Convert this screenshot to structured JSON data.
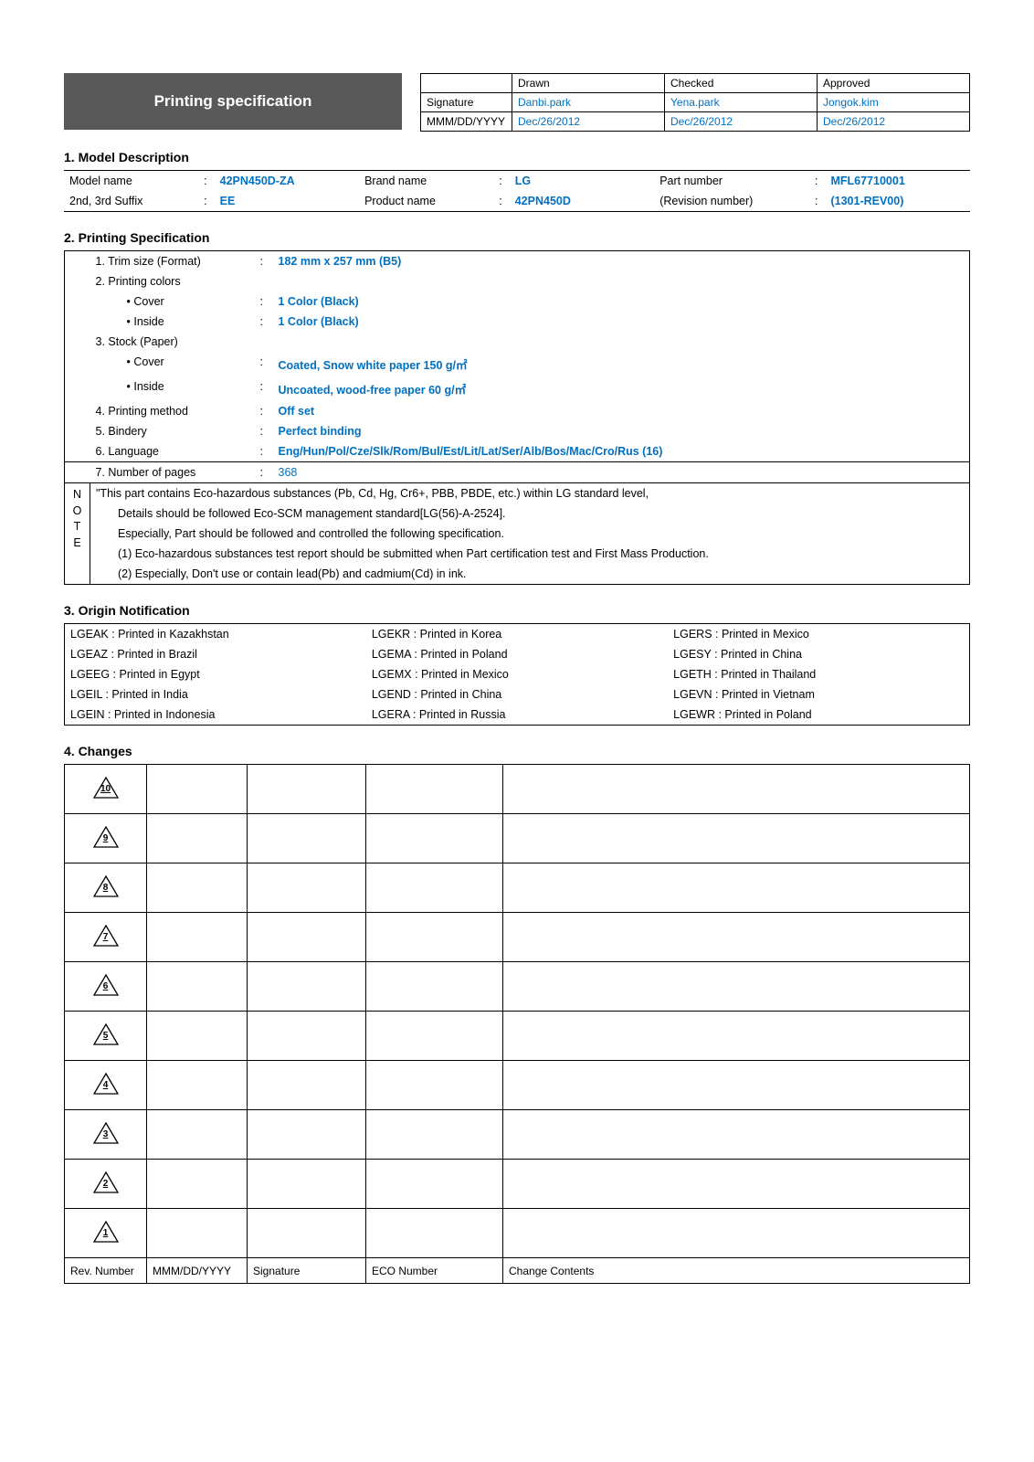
{
  "header": {
    "title": "Printing specification",
    "cols": [
      "Drawn",
      "Checked",
      "Approved"
    ],
    "row_labels": [
      "Signature",
      "MMM/DD/YYYY"
    ],
    "signature": [
      "Danbi.park",
      "Yena.park",
      "Jongok.kim"
    ],
    "date": [
      "Dec/26/2012",
      "Dec/26/2012",
      "Dec/26/2012"
    ]
  },
  "model": {
    "title": "1. Model Description",
    "rows": [
      [
        "Model name",
        "42PN450D-ZA",
        "Brand name",
        "LG",
        "Part number",
        "MFL67710001"
      ],
      [
        "2nd, 3rd Suffix",
        "EE",
        "Product name",
        "42PN450D",
        "(Revision number)",
        "(1301-REV00)"
      ]
    ]
  },
  "spec": {
    "title": "2. Printing Specification",
    "items": [
      {
        "label": "1. Trim size (Format)",
        "value": "182 mm x 257 mm (B5)"
      },
      {
        "label": "2. Printing colors",
        "value": ""
      },
      {
        "label": "• Cover",
        "value": "1 Color (Black)",
        "indent": true
      },
      {
        "label": "• Inside",
        "value": "1 Color (Black)",
        "indent": true
      },
      {
        "label": "3. Stock (Paper)",
        "value": ""
      },
      {
        "label": "• Cover",
        "value": "Coated, Snow white paper 150 g/㎡",
        "indent": true
      },
      {
        "label": "• Inside",
        "value": "Uncoated, wood-free paper 60 g/㎡",
        "indent": true
      },
      {
        "label": "4. Printing method",
        "value": "Off set"
      },
      {
        "label": "5. Bindery",
        "value": "Perfect binding"
      },
      {
        "label": "6. Language",
        "value": "Eng/Hun/Pol/Cze/Slk/Rom/Bul/Est/Lit/Lat/Ser/Alb/Bos/Mac/Cro/Rus (16)"
      }
    ],
    "last_item": {
      "label": "7. Number of pages",
      "value": "368"
    },
    "note_label": "N\nO\nT\nE",
    "notes": [
      "\"This part contains Eco-hazardous substances (Pb, Cd, Hg, Cr6+, PBB, PBDE, etc.) within LG standard level,",
      "Details should be followed Eco-SCM management standard[LG(56)-A-2524].",
      "Especially, Part should be followed and controlled the following specification.",
      "(1) Eco-hazardous substances test report should be submitted when Part certification test and First Mass Production.",
      "(2) Especially, Don't use or contain lead(Pb) and cadmium(Cd) in ink."
    ]
  },
  "origin": {
    "title": "3. Origin Notification",
    "rows": [
      [
        "LGEAK  :   Printed in Kazakhstan",
        "LGEKR  :   Printed in Korea",
        "LGERS  :   Printed in Mexico"
      ],
      [
        "LGEAZ  :   Printed in Brazil",
        "LGEMA  :   Printed in Poland",
        "LGESY  :   Printed in China"
      ],
      [
        "LGEEG  :   Printed in Egypt",
        "LGEMX  :   Printed in Mexico",
        "LGETH  :   Printed in Thailand"
      ],
      [
        "LGEIL  :   Printed in India",
        "LGEND  :   Printed in China",
        "LGEVN  :   Printed in Vietnam"
      ],
      [
        "LGEIN  :   Printed in Indonesia",
        "LGERA  :   Printed in Russia",
        "LGEWR  :   Printed in Poland"
      ]
    ]
  },
  "changes": {
    "title": "4. Changes",
    "rev_numbers": [
      "10",
      "9",
      "8",
      "7",
      "6",
      "5",
      "4",
      "3",
      "2",
      "1"
    ],
    "headers": [
      "Rev. Number",
      "MMM/DD/YYYY",
      "Signature",
      "ECO Number",
      "Change Contents"
    ]
  },
  "colors": {
    "title_bg": "#595959",
    "title_fg": "#ffffff",
    "blue": "#0070c0",
    "border": "#000000",
    "text": "#000000"
  }
}
